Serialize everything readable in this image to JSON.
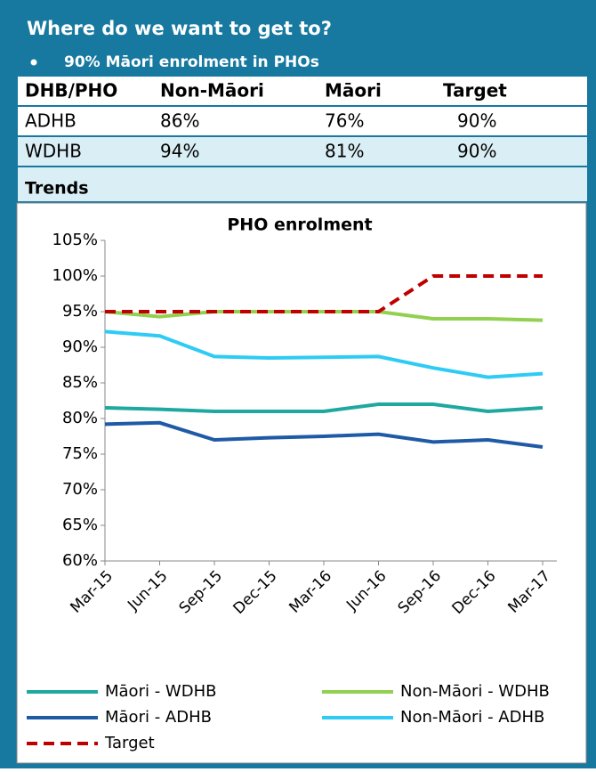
{
  "header": {
    "title": "Where do we want to get to?",
    "bullet": "90% Māori enrolment in PHOs"
  },
  "table": {
    "columns": [
      "DHB/PHO",
      "Non-Māori",
      "Māori",
      "Target"
    ],
    "rows": [
      [
        "ADHB",
        "86%",
        "76%",
        "90%"
      ],
      [
        "WDHB",
        "94%",
        "81%",
        "90%"
      ]
    ]
  },
  "section": "Trends",
  "chart_data": {
    "type": "line",
    "title": "PHO enrolment",
    "categories": [
      "Mar-15",
      "Jun-15",
      "Sep-15",
      "Dec-15",
      "Mar-16",
      "Jun-16",
      "Sep-16",
      "Dec-16",
      "Mar-17"
    ],
    "series": [
      {
        "name": "Māori - WDHB",
        "color": "#1fa89f",
        "values": [
          81.5,
          81.3,
          81,
          81,
          81,
          82,
          82,
          81,
          81.5
        ]
      },
      {
        "name": "Non-Māori - WDHB",
        "color": "#92d050",
        "values": [
          95,
          94.3,
          95,
          95,
          95,
          95,
          94,
          94,
          93.8
        ]
      },
      {
        "name": "Māori - ADHB",
        "color": "#1f5aa6",
        "values": [
          79.2,
          79.4,
          77,
          77.3,
          77.5,
          77.8,
          76.7,
          77,
          76
        ]
      },
      {
        "name": "Non-Māori - ADHB",
        "color": "#2ecbf5",
        "values": [
          92.2,
          91.6,
          88.7,
          88.5,
          88.6,
          88.7,
          87.1,
          85.8,
          86.3
        ]
      },
      {
        "name": "Target",
        "color": "#c00000",
        "dashed": true,
        "values": [
          95,
          95,
          95,
          95,
          95,
          95,
          100,
          100,
          100
        ]
      }
    ],
    "ylim": [
      60,
      105
    ],
    "yticks": [
      {
        "value": 60,
        "label": "60%"
      },
      {
        "value": 65,
        "label": "65%"
      },
      {
        "value": 70,
        "label": "70%"
      },
      {
        "value": 75,
        "label": "75%"
      },
      {
        "value": 80,
        "label": "80%"
      },
      {
        "value": 85,
        "label": "85%"
      },
      {
        "value": 90,
        "label": "90%"
      },
      {
        "value": 95,
        "label": "95%"
      },
      {
        "value": 100,
        "label": "100%"
      },
      {
        "value": 105,
        "label": "105%"
      }
    ]
  }
}
